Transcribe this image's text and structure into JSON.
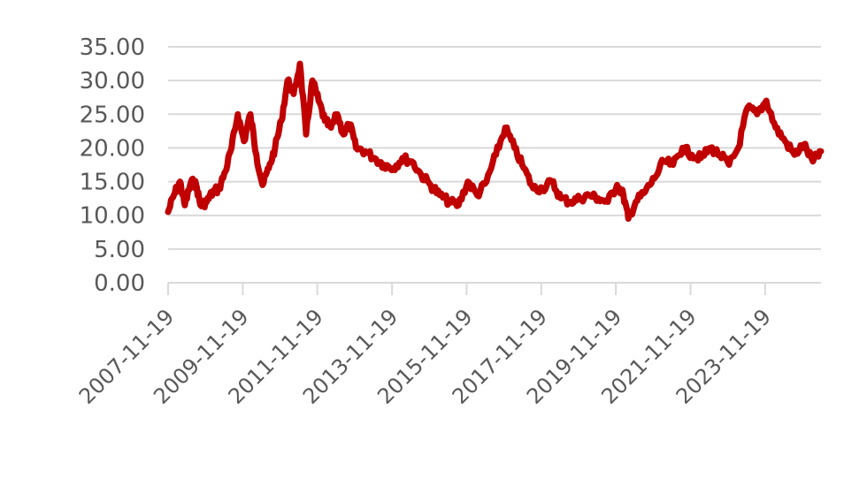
{
  "chart_data": {
    "type": "line",
    "title": "",
    "xlabel": "",
    "ylabel": "",
    "ylim": [
      0,
      35
    ],
    "y_ticks": [
      0,
      5,
      10,
      15,
      20,
      25,
      30,
      35
    ],
    "y_tick_labels": [
      "0.00",
      "5.00",
      "10.00",
      "15.00",
      "20.00",
      "25.00",
      "30.00",
      "35.00"
    ],
    "x_range": [
      "2007-11-19",
      "2025-05-19"
    ],
    "x_ticks": [
      "2007-11-19",
      "2009-11-19",
      "2011-11-19",
      "2013-11-19",
      "2015-11-19",
      "2017-11-19",
      "2019-11-19",
      "2021-11-19",
      "2023-11-19"
    ],
    "grid": true,
    "legend": "none",
    "line_color": "#c00000",
    "series": [
      {
        "x": [
          "2007-11-19",
          "2008-01-15",
          "2008-03-15",
          "2008-05-01",
          "2008-07-01",
          "2008-08-20",
          "2008-10-01",
          "2008-12-01",
          "2009-02-01",
          "2009-04-01",
          "2009-06-01",
          "2009-08-01",
          "2009-10-01",
          "2009-12-01",
          "2010-02-01",
          "2010-04-01",
          "2010-06-01",
          "2010-08-01",
          "2010-10-01",
          "2010-12-01",
          "2011-02-01",
          "2011-04-01",
          "2011-06-01",
          "2011-08-01",
          "2011-10-01",
          "2011-12-01",
          "2012-02-01",
          "2012-04-01",
          "2012-06-01",
          "2012-08-01",
          "2012-10-01",
          "2012-12-01",
          "2013-03-01",
          "2013-06-01",
          "2013-09-01",
          "2013-12-01",
          "2014-03-01",
          "2014-06-01",
          "2014-09-01",
          "2014-12-01",
          "2015-03-01",
          "2015-06-01",
          "2015-09-01",
          "2015-12-01",
          "2016-03-01",
          "2016-06-01",
          "2016-09-01",
          "2016-12-01",
          "2017-03-01",
          "2017-06-01",
          "2017-09-01",
          "2017-12-01",
          "2018-03-01",
          "2018-06-01",
          "2018-09-01",
          "2018-12-01",
          "2019-03-01",
          "2019-06-01",
          "2019-09-01",
          "2019-12-01",
          "2020-02-01",
          "2020-03-20",
          "2020-06-01",
          "2020-09-01",
          "2020-12-01",
          "2021-03-01",
          "2021-06-01",
          "2021-09-01",
          "2021-12-01",
          "2022-03-01",
          "2022-06-01",
          "2022-09-01",
          "2022-12-01",
          "2023-03-01",
          "2023-06-01",
          "2023-09-01",
          "2023-12-01",
          "2024-03-01",
          "2024-06-01",
          "2024-09-01",
          "2024-12-01",
          "2025-03-01",
          "2025-05-19"
        ],
        "y": [
          10.5,
          13.0,
          15.0,
          11.5,
          15.0,
          14.5,
          11.5,
          12.0,
          13.5,
          14.0,
          16.5,
          20.0,
          25.0,
          21.0,
          25.0,
          19.0,
          14.5,
          17.0,
          20.0,
          24.0,
          30.0,
          28.0,
          32.5,
          22.0,
          30.0,
          27.0,
          24.0,
          23.0,
          25.0,
          22.0,
          23.5,
          20.0,
          19.5,
          18.5,
          17.5,
          17.0,
          18.5,
          18.0,
          16.0,
          14.5,
          13.0,
          12.0,
          11.5,
          15.0,
          13.0,
          15.0,
          19.0,
          23.0,
          20.0,
          17.0,
          14.0,
          14.0,
          15.0,
          12.5,
          12.0,
          12.5,
          13.0,
          12.5,
          12.0,
          14.5,
          13.0,
          9.5,
          12.0,
          13.5,
          15.5,
          18.0,
          17.5,
          20.0,
          19.0,
          18.5,
          20.0,
          19.0,
          17.5,
          20.0,
          26.0,
          25.0,
          27.0,
          23.0,
          21.0,
          19.0,
          20.5,
          18.0,
          19.5
        ]
      }
    ]
  }
}
